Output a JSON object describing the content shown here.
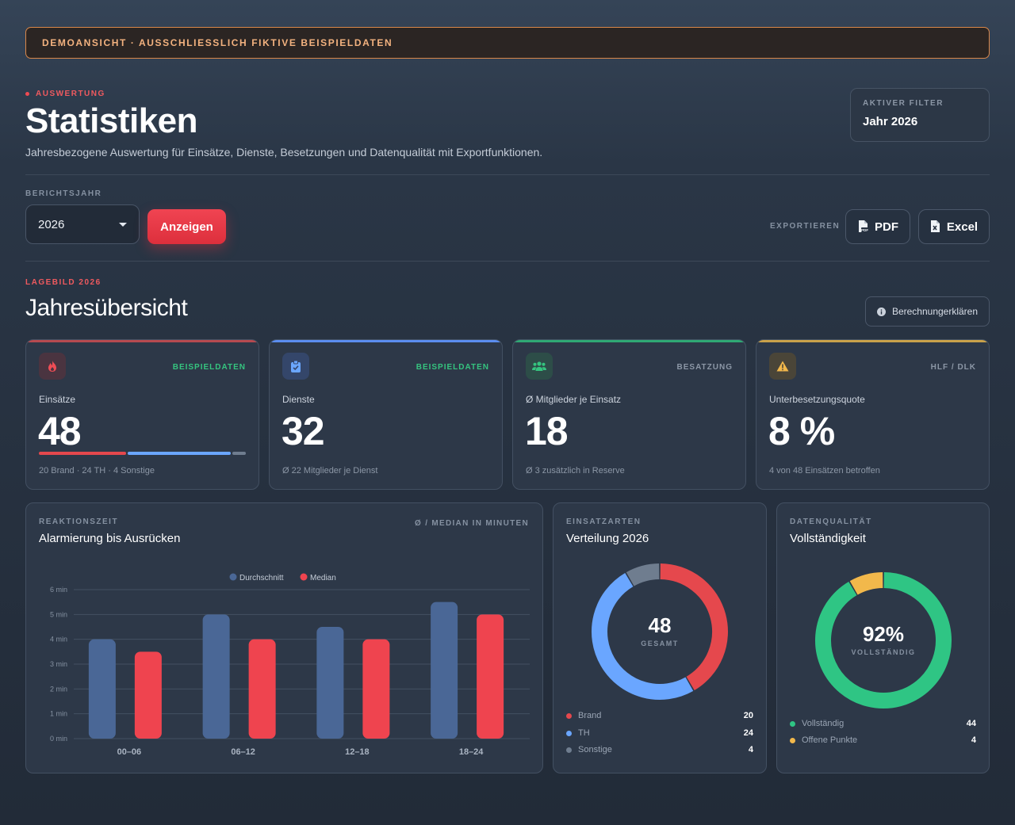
{
  "banner": {
    "text": "DEMOANSICHT · AUSSCHLIESSLICH FIKTIVE BEISPIELDATEN"
  },
  "header": {
    "eyebrow": "AUSWERTUNG",
    "title": "Statistiken",
    "subtitle": "Jahresbezogene Auswertung für Einsätze, Dienste, Besetzungen und Datenqualität mit Exportfunktionen."
  },
  "filter": {
    "label": "AKTIVER FILTER",
    "value": "Jahr 2026"
  },
  "controls": {
    "year_label": "BERICHTSJAHR",
    "year_value": "2026",
    "show_button": "Anzeigen",
    "export_label": "EXPORTIEREN",
    "pdf_button": "PDF",
    "excel_button": "Excel"
  },
  "overview": {
    "eyebrow": "LAGEBILD 2026",
    "title": "Jahresübersicht",
    "explain_button": "Berechnungerklären"
  },
  "kpis": [
    {
      "tag": "BEISPIELDATEN",
      "label": "Einsätze",
      "value": "48",
      "note": "20 Brand · 24 TH · 4 Sonstige",
      "accent": "#e5484d",
      "icon": "fire-icon"
    },
    {
      "tag": "BEISPIELDATEN",
      "label": "Dienste",
      "value": "32",
      "note": "Ø 22 Mitglieder je Dienst",
      "accent": "#5b8def",
      "icon": "clipboard-icon"
    },
    {
      "tag": "BESATZUNG",
      "label": "Ø Mitglieder je Einsatz",
      "value": "18",
      "note": "Ø 3 zusätzlich in Reserve",
      "accent": "#2fbf7a",
      "icon": "users-icon"
    },
    {
      "tag": "HLF / DLK",
      "label": "Unterbesetzungsquote",
      "value": "8 %",
      "note": "4 von 48 Einsätzen betroffen",
      "accent": "#e8b43c",
      "icon": "warning-icon"
    }
  ],
  "reaction": {
    "eyebrow": "REAKTIONSZEIT",
    "title": "Alarmierung bis Ausrücken",
    "unit_note": "Ø / MEDIAN IN MINUTEN"
  },
  "distribution": {
    "eyebrow": "EINSATZARTEN",
    "title": "Verteilung 2026",
    "center_value": "48",
    "center_label": "GESAMT",
    "items": [
      {
        "label": "Brand",
        "value": 20,
        "color": "#e5484d"
      },
      {
        "label": "TH",
        "value": 24,
        "color": "#6aa6ff"
      },
      {
        "label": "Sonstige",
        "value": 4,
        "color": "#6f7d8f"
      }
    ]
  },
  "quality": {
    "eyebrow": "DATENQUALITÄT",
    "title": "Vollständigkeit",
    "center_value": "92%",
    "center_label": "VOLLSTÄNDIG",
    "items": [
      {
        "label": "Vollständig",
        "value": 44,
        "color": "#2fc584"
      },
      {
        "label": "Offene Punkte",
        "value": 4,
        "color": "#f2b84b"
      }
    ]
  },
  "chart_data": {
    "type": "bar",
    "categories": [
      "00–06",
      "06–12",
      "12–18",
      "18–24"
    ],
    "series": [
      {
        "name": "Durchschnitt",
        "values": [
          4.0,
          5.0,
          4.5,
          5.5
        ],
        "color": "#4a6796"
      },
      {
        "name": "Median",
        "values": [
          3.5,
          4.0,
          4.0,
          5.0
        ],
        "color": "#ef444f"
      }
    ],
    "yticks": [
      "0 min",
      "1 min",
      "2 min",
      "3 min",
      "4 min",
      "5 min",
      "6 min"
    ],
    "ylim": [
      0,
      6
    ],
    "grid": true,
    "legend": "top"
  }
}
